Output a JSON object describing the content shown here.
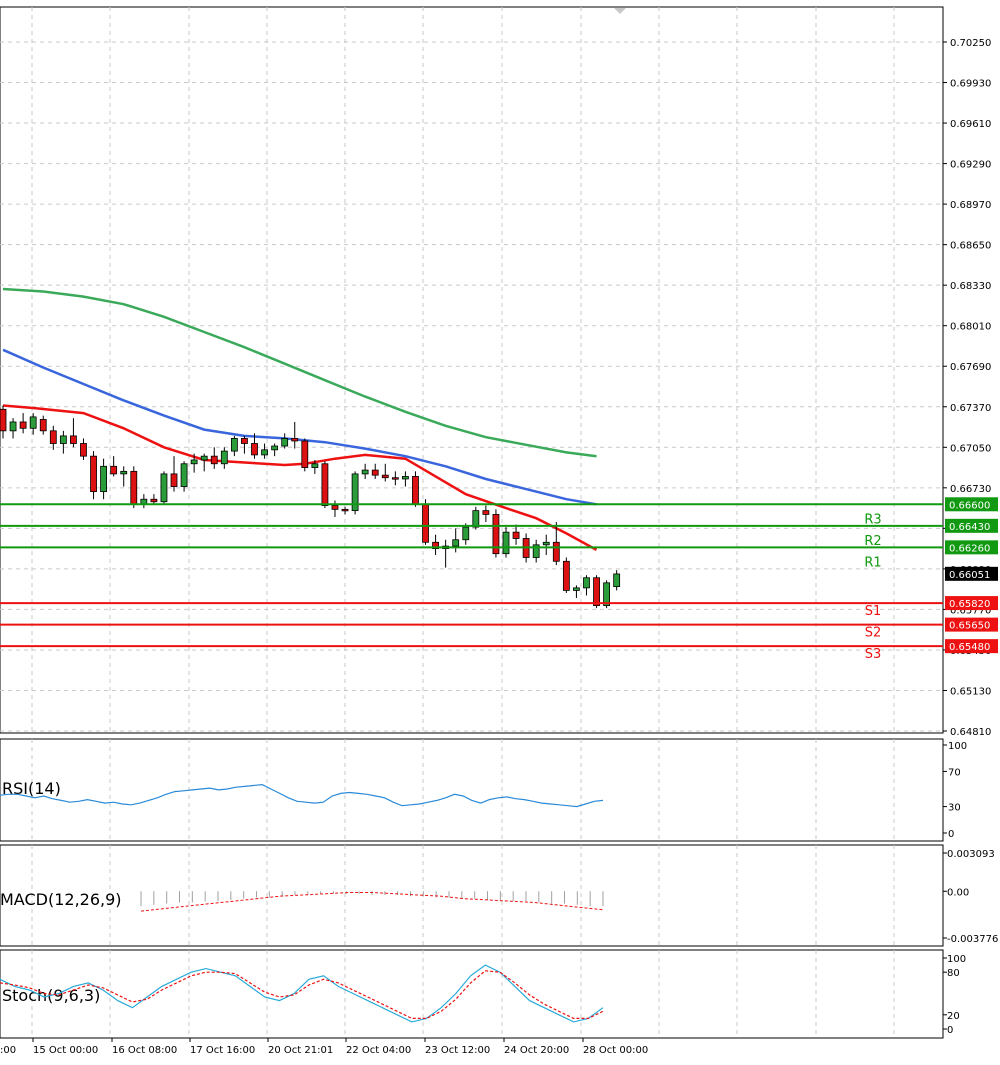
{
  "price_axis": {
    "labels": [
      "0.70250",
      "0.69930",
      "0.69610",
      "0.69290",
      "0.68970",
      "0.68650",
      "0.68330",
      "0.68010",
      "0.67690",
      "0.67370",
      "0.67050",
      "0.66730",
      "0.66410",
      "0.66090",
      "0.65770",
      "0.65450",
      "0.65130",
      "0.64810"
    ]
  },
  "current_price": "0.66051",
  "levels": [
    {
      "name": "R3",
      "price": "0.66600",
      "value": 0.666,
      "kind": "resistance",
      "color": "#119911"
    },
    {
      "name": "R2",
      "price": "0.66430",
      "value": 0.6643,
      "kind": "resistance",
      "color": "#119911"
    },
    {
      "name": "R1",
      "price": "0.66260",
      "value": 0.6626,
      "kind": "resistance",
      "color": "#119911"
    },
    {
      "name": "S1",
      "price": "0.65820",
      "value": 0.6582,
      "kind": "support",
      "color": "#ee1111"
    },
    {
      "name": "S2",
      "price": "0.65650",
      "value": 0.6565,
      "kind": "support",
      "color": "#ee1111"
    },
    {
      "name": "S3",
      "price": "0.65480",
      "value": 0.6548,
      "kind": "support",
      "color": "#ee1111"
    }
  ],
  "time_labels": [
    "15 Oct 00:00",
    "16 Oct 08:00",
    "17 Oct 16:00",
    "20 Oct 21:01",
    "22 Oct 04:00",
    "23 Oct 12:00",
    "24 Oct 20:00",
    "28 Oct 00:00"
  ],
  "time_label_cut": ":00",
  "indicators": {
    "rsi": {
      "label": "RSI(14)",
      "axis": [
        "100",
        "70",
        "30",
        "0"
      ]
    },
    "macd": {
      "label": "MACD(12,26,9)",
      "axis": [
        "0.003093",
        "0.00",
        "-0.003776"
      ]
    },
    "stoch": {
      "label": "Stoch(9,6,3)",
      "axis": [
        "100",
        "80",
        "20",
        "0"
      ]
    }
  },
  "colors": {
    "bull": "#2a9d3a",
    "bear": "#dd1111",
    "ma_fast": "#ee1111",
    "ma_mid": "#3a66dd",
    "ma_slow": "#3aaa5a",
    "rsi": "#2a8ad8",
    "stoch_main": "#2aaad8",
    "stoch_signal": "#ee1111",
    "grid": "#c9c9c9"
  },
  "chart_data": {
    "type": "candlestick",
    "instrument_unit": "price",
    "ylim": [
      0.6469,
      0.7041
    ],
    "candles": [
      [
        0.6735,
        0.6738,
        0.6712,
        0.6718
      ],
      [
        0.6718,
        0.6728,
        0.6712,
        0.6725
      ],
      [
        0.6725,
        0.6732,
        0.6716,
        0.672
      ],
      [
        0.672,
        0.6732,
        0.6715,
        0.6729
      ],
      [
        0.6727,
        0.673,
        0.6715,
        0.6718
      ],
      [
        0.6718,
        0.6722,
        0.6703,
        0.6708
      ],
      [
        0.6708,
        0.6718,
        0.67,
        0.6714
      ],
      [
        0.6714,
        0.6728,
        0.6705,
        0.6708
      ],
      [
        0.6708,
        0.6712,
        0.6695,
        0.6698
      ],
      [
        0.6698,
        0.6702,
        0.6664,
        0.667
      ],
      [
        0.667,
        0.6696,
        0.6664,
        0.669
      ],
      [
        0.669,
        0.6698,
        0.6682,
        0.6684
      ],
      [
        0.6684,
        0.669,
        0.6674,
        0.6686
      ],
      [
        0.6686,
        0.669,
        0.6657,
        0.666
      ],
      [
        0.666,
        0.6668,
        0.6657,
        0.6664
      ],
      [
        0.6664,
        0.6668,
        0.666,
        0.6662
      ],
      [
        0.6662,
        0.6686,
        0.666,
        0.6684
      ],
      [
        0.6684,
        0.6698,
        0.667,
        0.6674
      ],
      [
        0.6674,
        0.6694,
        0.667,
        0.6692
      ],
      [
        0.6692,
        0.67,
        0.6685,
        0.6695
      ],
      [
        0.6695,
        0.67,
        0.6686,
        0.6698
      ],
      [
        0.6698,
        0.6705,
        0.6688,
        0.6692
      ],
      [
        0.6692,
        0.6705,
        0.6688,
        0.6702
      ],
      [
        0.6702,
        0.6714,
        0.6698,
        0.6712
      ],
      [
        0.6712,
        0.6714,
        0.67,
        0.6708
      ],
      [
        0.6708,
        0.6716,
        0.6696,
        0.6699
      ],
      [
        0.6699,
        0.6708,
        0.6696,
        0.6703
      ],
      [
        0.6703,
        0.6708,
        0.6698,
        0.6706
      ],
      [
        0.6706,
        0.6716,
        0.6704,
        0.6712
      ],
      [
        0.6712,
        0.6725,
        0.6704,
        0.671
      ],
      [
        0.671,
        0.6712,
        0.6686,
        0.6689
      ],
      [
        0.6689,
        0.6695,
        0.6684,
        0.6692
      ],
      [
        0.6692,
        0.6694,
        0.6657,
        0.6659
      ],
      [
        0.6659,
        0.6663,
        0.665,
        0.6656
      ],
      [
        0.6656,
        0.6658,
        0.6652,
        0.6655
      ],
      [
        0.6655,
        0.6686,
        0.6652,
        0.6684
      ],
      [
        0.6684,
        0.6692,
        0.668,
        0.6687
      ],
      [
        0.6687,
        0.6692,
        0.668,
        0.6683
      ],
      [
        0.6683,
        0.6692,
        0.6678,
        0.6681
      ],
      [
        0.6681,
        0.6686,
        0.6675,
        0.668
      ],
      [
        0.668,
        0.6686,
        0.6674,
        0.6682
      ],
      [
        0.6682,
        0.6686,
        0.6658,
        0.666
      ],
      [
        0.666,
        0.6664,
        0.6628,
        0.663
      ],
      [
        0.663,
        0.6636,
        0.662,
        0.6625
      ],
      [
        0.6625,
        0.6632,
        0.661,
        0.6627
      ],
      [
        0.6627,
        0.6641,
        0.6622,
        0.6632
      ],
      [
        0.6632,
        0.6645,
        0.6628,
        0.6642
      ],
      [
        0.6642,
        0.6658,
        0.664,
        0.6655
      ],
      [
        0.6655,
        0.6659,
        0.6646,
        0.6652
      ],
      [
        0.6652,
        0.6656,
        0.6618,
        0.6621
      ],
      [
        0.6621,
        0.6642,
        0.6618,
        0.6638
      ],
      [
        0.6638,
        0.6644,
        0.6628,
        0.6633
      ],
      [
        0.6633,
        0.6637,
        0.6614,
        0.6618
      ],
      [
        0.6618,
        0.6632,
        0.6614,
        0.6628
      ],
      [
        0.6628,
        0.6636,
        0.662,
        0.663
      ],
      [
        0.663,
        0.6646,
        0.6612,
        0.6615
      ],
      [
        0.6615,
        0.6618,
        0.659,
        0.6592
      ],
      [
        0.6592,
        0.6596,
        0.6586,
        0.6594
      ],
      [
        0.6594,
        0.6604,
        0.6588,
        0.6602
      ],
      [
        0.6602,
        0.6604,
        0.6578,
        0.658
      ],
      [
        0.658,
        0.66,
        0.6578,
        0.6598
      ],
      [
        0.6595,
        0.6608,
        0.6592,
        0.6605
      ]
    ],
    "moving_averages": [
      {
        "color": "red",
        "points": [
          [
            0,
            0.6738
          ],
          [
            3,
            0.6736
          ],
          [
            8,
            0.6732
          ],
          [
            12,
            0.672
          ],
          [
            16,
            0.6705
          ],
          [
            20,
            0.6695
          ],
          [
            24,
            0.6693
          ],
          [
            28,
            0.6691
          ],
          [
            30,
            0.6692
          ],
          [
            33,
            0.6696
          ],
          [
            36,
            0.6699
          ],
          [
            40,
            0.6696
          ],
          [
            43,
            0.6682
          ],
          [
            46,
            0.6668
          ],
          [
            50,
            0.6657
          ],
          [
            53,
            0.6649
          ],
          [
            56,
            0.6637
          ],
          [
            59,
            0.6624
          ]
        ]
      },
      {
        "color": "blue",
        "points": [
          [
            0,
            0.6782
          ],
          [
            4,
            0.6768
          ],
          [
            8,
            0.6755
          ],
          [
            12,
            0.6742
          ],
          [
            16,
            0.673
          ],
          [
            20,
            0.6719
          ],
          [
            24,
            0.6714
          ],
          [
            28,
            0.6712
          ],
          [
            32,
            0.6709
          ],
          [
            36,
            0.6704
          ],
          [
            40,
            0.6698
          ],
          [
            44,
            0.669
          ],
          [
            48,
            0.668
          ],
          [
            52,
            0.6672
          ],
          [
            56,
            0.6664
          ],
          [
            59,
            0.666
          ]
        ]
      },
      {
        "color": "green",
        "points": [
          [
            0,
            0.683
          ],
          [
            4,
            0.6828
          ],
          [
            8,
            0.6824
          ],
          [
            12,
            0.6818
          ],
          [
            16,
            0.6808
          ],
          [
            20,
            0.6796
          ],
          [
            24,
            0.6784
          ],
          [
            28,
            0.6771
          ],
          [
            32,
            0.6758
          ],
          [
            36,
            0.6745
          ],
          [
            40,
            0.6733
          ],
          [
            44,
            0.6722
          ],
          [
            48,
            0.6713
          ],
          [
            52,
            0.6707
          ],
          [
            56,
            0.6701
          ],
          [
            59,
            0.6698
          ]
        ]
      }
    ],
    "rsi": [
      43,
      44,
      44,
      42,
      40,
      42,
      39,
      37,
      35,
      36,
      38,
      36,
      34,
      35,
      33,
      32,
      34,
      37,
      40,
      44,
      47,
      48,
      49,
      50,
      51,
      49,
      50,
      52,
      53,
      54,
      55,
      50,
      45,
      40,
      36,
      35,
      34,
      35,
      42,
      45,
      46,
      45,
      44,
      42,
      40,
      35,
      31,
      32,
      33,
      35,
      37,
      40,
      44,
      42,
      37,
      34,
      38,
      40,
      41,
      39,
      38,
      36,
      34,
      33,
      32,
      31,
      30,
      33,
      36,
      37
    ],
    "macd_histogram": [
      -0.0012,
      -0.0011,
      -0.001,
      -0.0009,
      -0.0009,
      -0.0008,
      -0.0008,
      -0.0007,
      -0.0006,
      -0.0005,
      -0.0005,
      -0.0004,
      -0.0003,
      -0.0003,
      -0.0002,
      -0.0002,
      -0.0002,
      -0.0002,
      -0.0003,
      -0.0003,
      -0.0003,
      -0.0004,
      -0.0004,
      -0.0005,
      -0.0005,
      -0.0006,
      -0.0006,
      -0.0007,
      -0.0007,
      -0.0008,
      -0.0008,
      -0.0009,
      -0.001,
      -0.001,
      -0.0011,
      -0.0012,
      -0.0012
    ],
    "macd_signal": [
      -0.0016,
      -0.0014,
      -0.0012,
      -0.001,
      -0.0008,
      -0.0006,
      -0.0004,
      -0.0003,
      -0.0002,
      -0.0001,
      -0.0001,
      -0.0002,
      -0.0003,
      -0.0004,
      -0.0006,
      -0.0007,
      -0.0008,
      -0.0009,
      -0.0011,
      -0.0013,
      -0.0015
    ],
    "stoch_main": [
      70,
      60,
      55,
      45,
      50,
      60,
      65,
      55,
      40,
      30,
      45,
      60,
      70,
      80,
      85,
      80,
      75,
      60,
      45,
      40,
      50,
      70,
      75,
      60,
      50,
      40,
      30,
      20,
      10,
      15,
      30,
      50,
      75,
      90,
      80,
      60,
      40,
      30,
      20,
      10,
      15,
      30
    ],
    "stoch_signal": [
      65,
      62,
      58,
      50,
      48,
      55,
      62,
      58,
      48,
      38,
      42,
      55,
      65,
      75,
      80,
      80,
      78,
      65,
      52,
      45,
      48,
      62,
      70,
      65,
      55,
      45,
      35,
      25,
      15,
      15,
      25,
      42,
      65,
      82,
      80,
      65,
      48,
      35,
      25,
      15,
      15,
      25
    ]
  }
}
